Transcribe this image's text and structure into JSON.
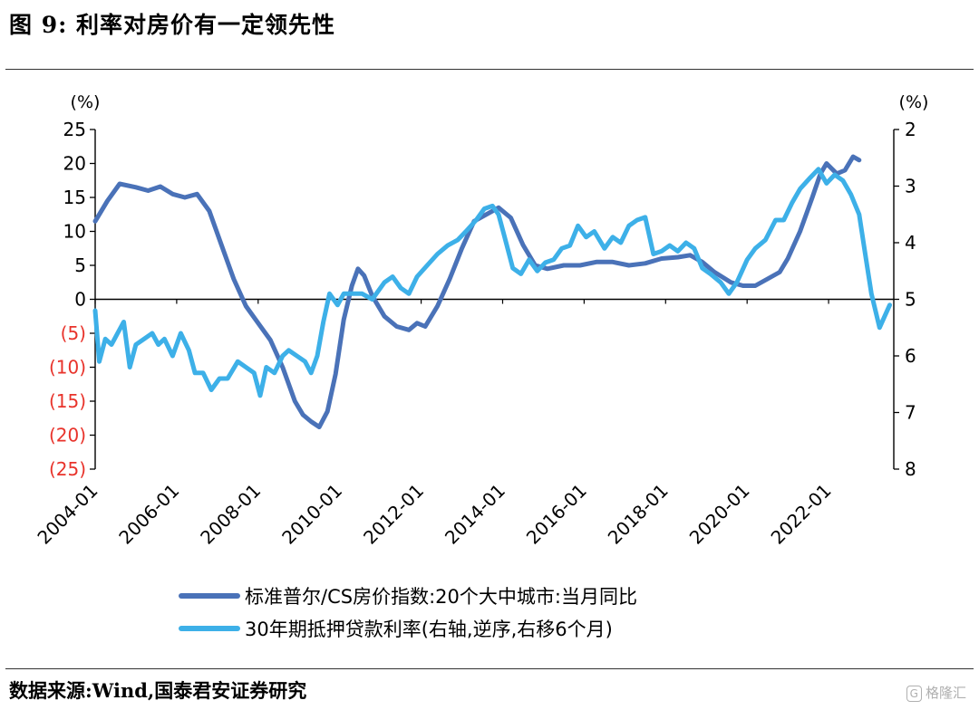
{
  "title": "图 9:  利率对房价有一定领先性",
  "source": "数据来源:Wind,国泰君安证券研究",
  "watermark": "格隆汇",
  "chart_data": {
    "type": "line",
    "left_axis": {
      "unit": "(%)",
      "ticks": [
        25,
        20,
        15,
        10,
        5,
        0,
        -5,
        -10,
        -15,
        -20,
        -25
      ],
      "tick_labels": [
        "25",
        "20",
        "15",
        "10",
        "5",
        "0",
        "(5)",
        "(10)",
        "(15)",
        "(20)",
        "(25)"
      ],
      "negative_color": "#e8332b",
      "range": [
        -25,
        25
      ]
    },
    "right_axis": {
      "unit": "(%)",
      "ticks": [
        2,
        3,
        4,
        5,
        6,
        7,
        8
      ],
      "tick_labels": [
        "2",
        "3",
        "4",
        "5",
        "6",
        "7",
        "8"
      ],
      "inverted": true,
      "range": [
        2,
        8
      ]
    },
    "x_ticks": [
      "2004-01",
      "2006-01",
      "2008-01",
      "2010-01",
      "2012-01",
      "2014-01",
      "2016-01",
      "2018-01",
      "2020-01",
      "2022-01"
    ],
    "series": [
      {
        "name": "标准普尔/CS房价指数:20个大中城市:当月同比",
        "axis": "left",
        "color": "#4a72b8",
        "points": [
          [
            2004.0,
            11.5
          ],
          [
            2004.3,
            14.5
          ],
          [
            2004.6,
            17.0
          ],
          [
            2005.0,
            16.5
          ],
          [
            2005.3,
            16.0
          ],
          [
            2005.6,
            16.6
          ],
          [
            2005.9,
            15.5
          ],
          [
            2006.2,
            15.0
          ],
          [
            2006.5,
            15.5
          ],
          [
            2006.8,
            13.0
          ],
          [
            2007.1,
            8.0
          ],
          [
            2007.4,
            3.0
          ],
          [
            2007.7,
            -1.0
          ],
          [
            2008.0,
            -3.5
          ],
          [
            2008.3,
            -6.0
          ],
          [
            2008.6,
            -10.0
          ],
          [
            2008.9,
            -15.0
          ],
          [
            2009.1,
            -17.0
          ],
          [
            2009.3,
            -18.0
          ],
          [
            2009.5,
            -18.8
          ],
          [
            2009.7,
            -16.5
          ],
          [
            2009.9,
            -11.0
          ],
          [
            2010.1,
            -3.0
          ],
          [
            2010.3,
            2.0
          ],
          [
            2010.45,
            4.5
          ],
          [
            2010.6,
            3.5
          ],
          [
            2010.8,
            0.5
          ],
          [
            2011.1,
            -2.5
          ],
          [
            2011.4,
            -4.0
          ],
          [
            2011.7,
            -4.5
          ],
          [
            2011.9,
            -3.5
          ],
          [
            2012.1,
            -4.0
          ],
          [
            2012.4,
            -1.0
          ],
          [
            2012.7,
            3.0
          ],
          [
            2013.0,
            7.5
          ],
          [
            2013.3,
            11.5
          ],
          [
            2013.6,
            12.5
          ],
          [
            2013.9,
            13.5
          ],
          [
            2014.2,
            12.0
          ],
          [
            2014.5,
            8.0
          ],
          [
            2014.8,
            5.0
          ],
          [
            2015.1,
            4.5
          ],
          [
            2015.5,
            5.0
          ],
          [
            2015.9,
            5.0
          ],
          [
            2016.3,
            5.5
          ],
          [
            2016.7,
            5.5
          ],
          [
            2017.1,
            5.0
          ],
          [
            2017.5,
            5.3
          ],
          [
            2017.9,
            6.0
          ],
          [
            2018.3,
            6.2
          ],
          [
            2018.6,
            6.5
          ],
          [
            2018.9,
            5.5
          ],
          [
            2019.2,
            4.0
          ],
          [
            2019.6,
            2.5
          ],
          [
            2019.9,
            2.0
          ],
          [
            2020.2,
            2.0
          ],
          [
            2020.5,
            3.0
          ],
          [
            2020.8,
            4.0
          ],
          [
            2021.0,
            6.0
          ],
          [
            2021.3,
            10.0
          ],
          [
            2021.6,
            15.0
          ],
          [
            2021.8,
            18.5
          ],
          [
            2021.95,
            20.0
          ],
          [
            2022.2,
            18.5
          ],
          [
            2022.4,
            19.0
          ],
          [
            2022.6,
            21.0
          ],
          [
            2022.75,
            20.5
          ]
        ]
      },
      {
        "name": "30年期抵押贷款利率(右轴,逆序,右移6个月)",
        "axis": "right",
        "color": "#3db0e8",
        "points": [
          [
            2004.0,
            5.2
          ],
          [
            2004.1,
            6.1
          ],
          [
            2004.25,
            5.7
          ],
          [
            2004.4,
            5.8
          ],
          [
            2004.55,
            5.6
          ],
          [
            2004.7,
            5.4
          ],
          [
            2004.85,
            6.2
          ],
          [
            2005.0,
            5.8
          ],
          [
            2005.2,
            5.7
          ],
          [
            2005.4,
            5.6
          ],
          [
            2005.55,
            5.8
          ],
          [
            2005.7,
            5.7
          ],
          [
            2005.9,
            6.0
          ],
          [
            2006.1,
            5.6
          ],
          [
            2006.3,
            5.9
          ],
          [
            2006.45,
            6.3
          ],
          [
            2006.65,
            6.3
          ],
          [
            2006.85,
            6.6
          ],
          [
            2007.05,
            6.4
          ],
          [
            2007.25,
            6.4
          ],
          [
            2007.5,
            6.1
          ],
          [
            2007.7,
            6.2
          ],
          [
            2007.9,
            6.3
          ],
          [
            2008.05,
            6.7
          ],
          [
            2008.2,
            6.2
          ],
          [
            2008.4,
            6.3
          ],
          [
            2008.6,
            6.0
          ],
          [
            2008.75,
            5.9
          ],
          [
            2008.95,
            6.0
          ],
          [
            2009.15,
            6.1
          ],
          [
            2009.3,
            6.3
          ],
          [
            2009.45,
            6.0
          ],
          [
            2009.6,
            5.4
          ],
          [
            2009.75,
            4.9
          ],
          [
            2009.95,
            5.1
          ],
          [
            2010.1,
            4.9
          ],
          [
            2010.3,
            4.9
          ],
          [
            2010.55,
            4.9
          ],
          [
            2010.8,
            5.0
          ],
          [
            2011.1,
            4.7
          ],
          [
            2011.3,
            4.6
          ],
          [
            2011.5,
            4.8
          ],
          [
            2011.7,
            4.9
          ],
          [
            2011.9,
            4.6
          ],
          [
            2012.15,
            4.4
          ],
          [
            2012.4,
            4.2
          ],
          [
            2012.65,
            4.05
          ],
          [
            2012.9,
            3.95
          ],
          [
            2013.1,
            3.8
          ],
          [
            2013.35,
            3.6
          ],
          [
            2013.55,
            3.4
          ],
          [
            2013.75,
            3.35
          ],
          [
            2013.9,
            3.5
          ],
          [
            2014.05,
            3.9
          ],
          [
            2014.25,
            4.45
          ],
          [
            2014.45,
            4.55
          ],
          [
            2014.65,
            4.3
          ],
          [
            2014.85,
            4.5
          ],
          [
            2015.05,
            4.35
          ],
          [
            2015.25,
            4.3
          ],
          [
            2015.45,
            4.1
          ],
          [
            2015.65,
            4.05
          ],
          [
            2015.85,
            3.7
          ],
          [
            2016.05,
            3.9
          ],
          [
            2016.25,
            3.8
          ],
          [
            2016.5,
            4.1
          ],
          [
            2016.7,
            3.9
          ],
          [
            2016.9,
            4.0
          ],
          [
            2017.1,
            3.7
          ],
          [
            2017.3,
            3.6
          ],
          [
            2017.5,
            3.55
          ],
          [
            2017.7,
            4.2
          ],
          [
            2017.9,
            4.15
          ],
          [
            2018.1,
            4.05
          ],
          [
            2018.3,
            4.15
          ],
          [
            2018.5,
            4.0
          ],
          [
            2018.7,
            4.1
          ],
          [
            2018.9,
            4.45
          ],
          [
            2019.1,
            4.55
          ],
          [
            2019.35,
            4.7
          ],
          [
            2019.55,
            4.9
          ],
          [
            2019.75,
            4.7
          ],
          [
            2020.0,
            4.3
          ],
          [
            2020.2,
            4.1
          ],
          [
            2020.45,
            3.95
          ],
          [
            2020.7,
            3.6
          ],
          [
            2020.9,
            3.6
          ],
          [
            2021.1,
            3.3
          ],
          [
            2021.3,
            3.05
          ],
          [
            2021.55,
            2.85
          ],
          [
            2021.75,
            2.7
          ],
          [
            2021.95,
            2.95
          ],
          [
            2022.15,
            2.8
          ],
          [
            2022.35,
            2.9
          ],
          [
            2022.55,
            3.15
          ],
          [
            2022.75,
            3.5
          ],
          [
            2022.9,
            4.2
          ],
          [
            2023.05,
            4.9
          ],
          [
            2023.25,
            5.5
          ],
          [
            2023.5,
            5.1
          ]
        ]
      }
    ]
  }
}
